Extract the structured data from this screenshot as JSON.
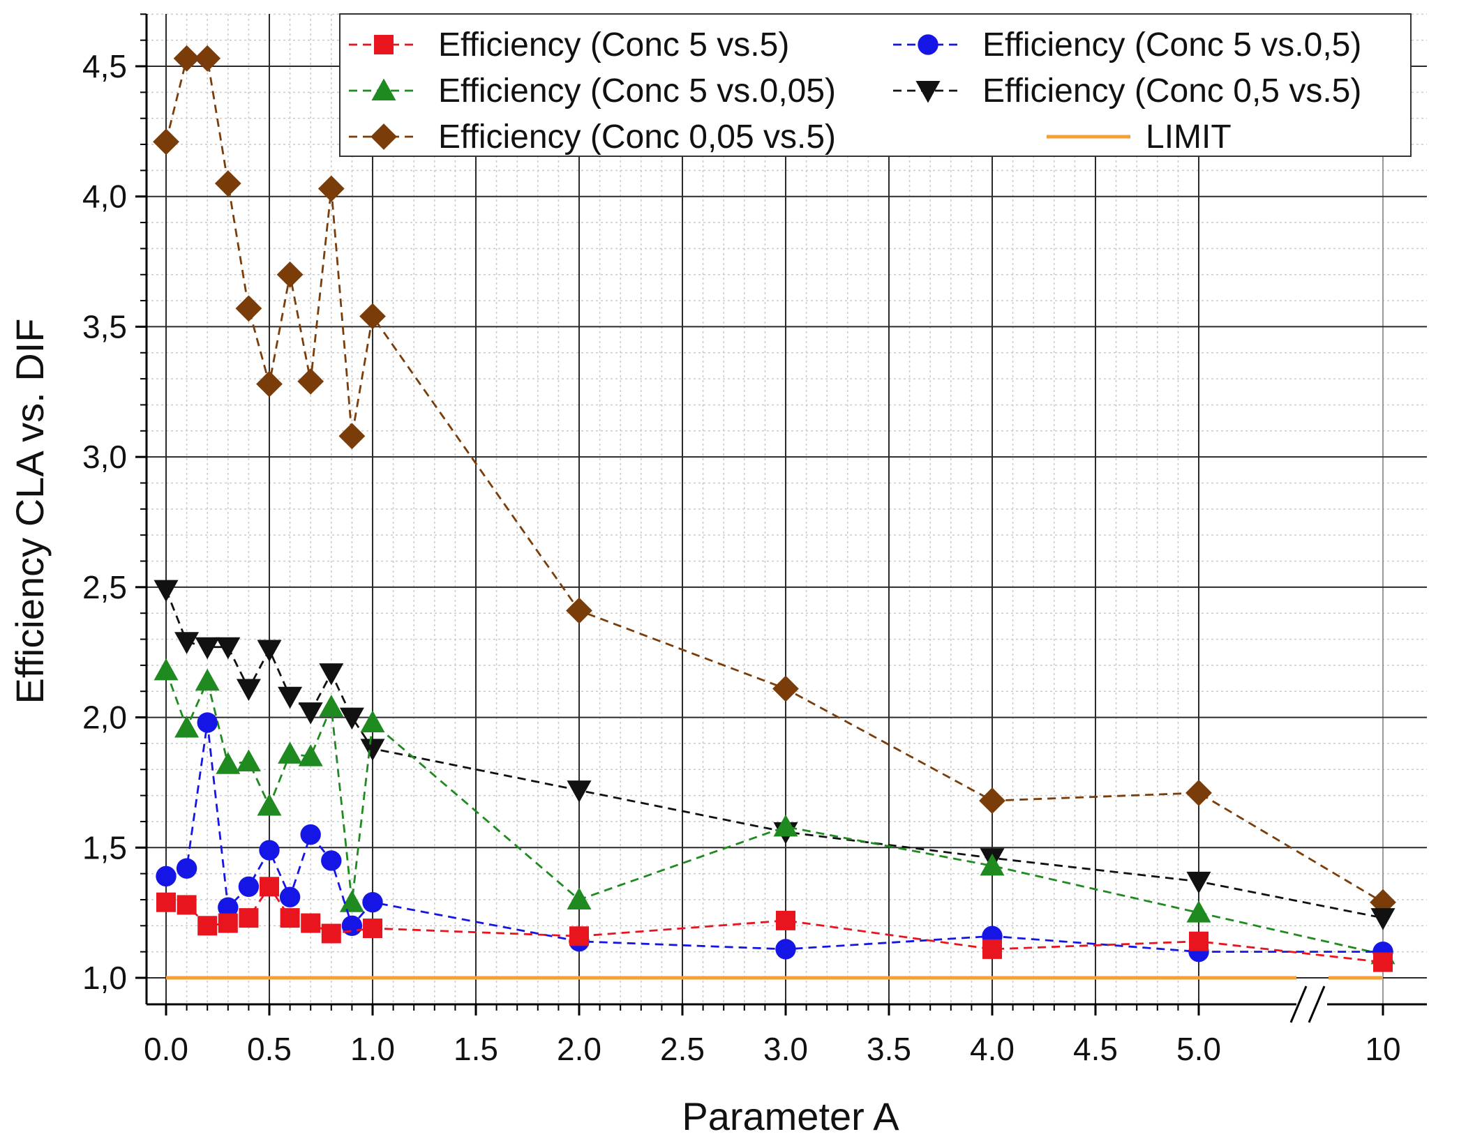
{
  "chart_data": {
    "type": "line",
    "title": "",
    "xlabel": "Parameter A",
    "ylabel": "Efficiency CLA vs. DIF",
    "ylim": [
      1.0,
      4.75
    ],
    "x_axis_note": "broken axis between 5.0 and 10",
    "x_categories": [
      "0.0",
      "0.1",
      "0.2",
      "0.3",
      "0.4",
      "0.5",
      "0.6",
      "0.7",
      "0.8",
      "0.9",
      "1.0",
      "2.0",
      "3.0",
      "4.0",
      "5.0",
      "10"
    ],
    "x_tick_labels": [
      "0.0",
      "0.5",
      "1.0",
      "1.5",
      "2.0",
      "2.5",
      "3.0",
      "3.5",
      "4.0",
      "4.5",
      "5.0",
      "10"
    ],
    "y_tick_labels": [
      "1.0",
      "1.5",
      "2.0",
      "2.5",
      "3.0",
      "3.5",
      "4.0",
      "4.5"
    ],
    "series": [
      {
        "name": "Efficiency (Conc 5 vs.5)",
        "color": "#e8141e",
        "marker": "square",
        "values": [
          1.29,
          1.28,
          1.2,
          1.21,
          1.23,
          1.35,
          1.23,
          1.21,
          1.17,
          null,
          1.19,
          1.16,
          1.22,
          1.11,
          1.14,
          1.06
        ]
      },
      {
        "name": "Efficiency (Conc 5 vs.0,5)",
        "color": "#1515e6",
        "marker": "circle",
        "values": [
          1.39,
          1.42,
          1.98,
          1.27,
          1.35,
          1.49,
          1.31,
          1.55,
          1.45,
          1.2,
          1.29,
          1.14,
          1.11,
          1.16,
          1.1,
          1.1
        ]
      },
      {
        "name": "Efficiency (Conc 5 vs.0,05)",
        "color": "#1f8a1f",
        "marker": "triangle-up",
        "values": [
          2.18,
          1.96,
          2.14,
          1.82,
          1.83,
          1.66,
          1.86,
          1.85,
          2.04,
          1.29,
          1.98,
          1.3,
          1.58,
          1.43,
          1.25,
          1.09
        ]
      },
      {
        "name": "Efficiency (Conc 0,5 vs.5)",
        "color": "#111111",
        "marker": "triangle-down",
        "values": [
          2.49,
          2.29,
          2.27,
          2.27,
          2.11,
          2.26,
          2.08,
          2.02,
          2.17,
          2.0,
          1.88,
          1.72,
          1.56,
          1.46,
          1.37,
          1.23
        ]
      },
      {
        "name": "Efficiency (Conc 0,05 vs.5)",
        "color": "#7a3d0a",
        "marker": "diamond",
        "values": [
          4.21,
          4.53,
          4.53,
          4.05,
          3.57,
          3.28,
          3.7,
          3.29,
          4.03,
          3.08,
          3.54,
          2.41,
          2.11,
          1.68,
          1.71,
          1.29
        ]
      },
      {
        "name": "LIMIT",
        "color": "#f5a033",
        "marker": "none",
        "values": [
          1.0,
          1.0
        ]
      }
    ],
    "legend": {
      "placement": "top-right",
      "entries": [
        "Efficiency (Conc 5 vs.5)",
        "Efficiency (Conc 5 vs.0,5)",
        "Efficiency (Conc 5 vs.0,05)",
        "Efficiency (Conc 0,5 vs.5)",
        "Efficiency (Conc 0,05 vs.5)",
        "LIMIT"
      ]
    }
  }
}
